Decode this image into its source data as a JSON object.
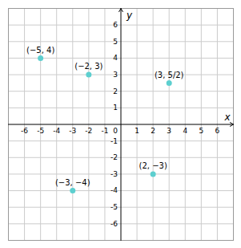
{
  "chart_data": {
    "type": "scatter",
    "x": [
      -5,
      -2,
      -3,
      2,
      3
    ],
    "values": [
      4,
      3,
      -4,
      -3,
      2.5
    ],
    "value_labels": [
      "(−5, 4)",
      "(−2, 3)",
      "(−3, −4)",
      "(2, −3)",
      "(3, 5/2)"
    ],
    "data_labels": true,
    "color": "#5DCFCF",
    "xlabel": "x",
    "ylabel": "y",
    "xlim": [
      -7,
      7
    ],
    "ylim": [
      -7,
      7
    ],
    "xticks": [
      -6,
      -5,
      -4,
      -3,
      -2,
      -1,
      1,
      2,
      3,
      4,
      5,
      6
    ],
    "yticks": [
      -6,
      -5,
      -4,
      -3,
      -2,
      -1,
      1,
      2,
      3,
      4,
      5,
      6
    ],
    "grid": true,
    "annotations": [
      {
        "text": "0",
        "x": 0,
        "y": 0
      }
    ]
  }
}
